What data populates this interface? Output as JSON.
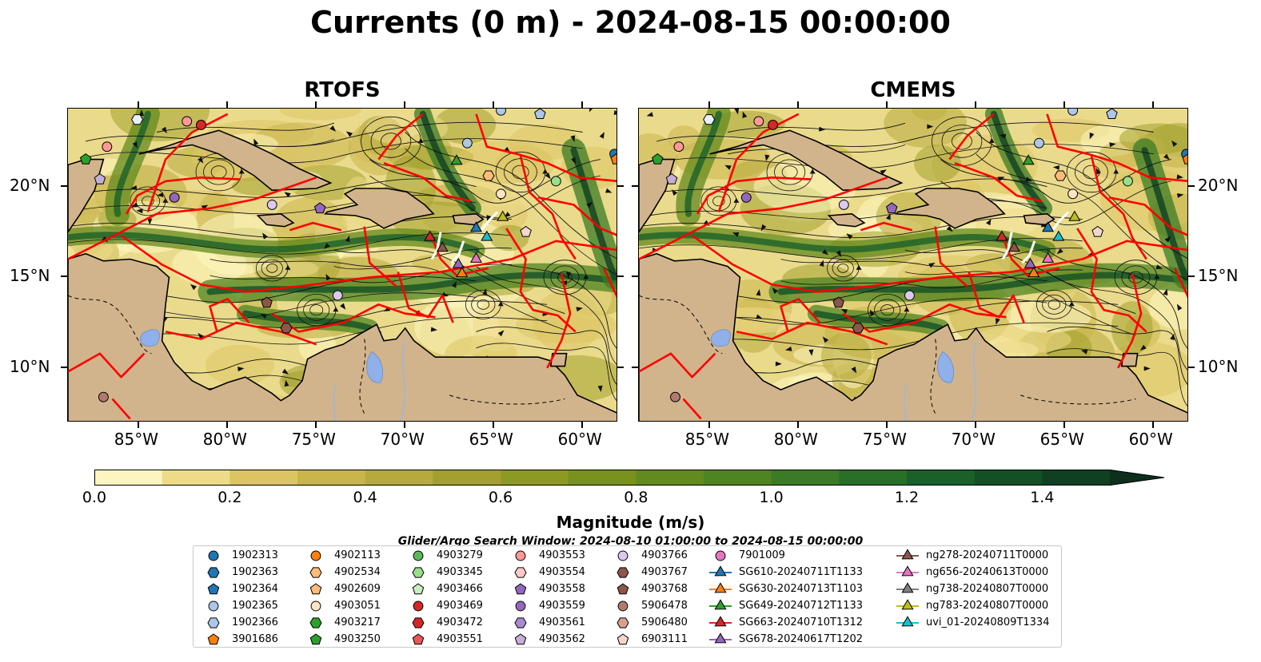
{
  "title": "Currents (0 m) - 2024-08-15 00:00:00",
  "panels": [
    {
      "title": "RTOFS"
    },
    {
      "title": "CMEMS"
    }
  ],
  "axes": {
    "lat_ticks": [
      "20°N",
      "15°N",
      "10°N"
    ],
    "lon_ticks": [
      "85°W",
      "80°W",
      "75°W",
      "70°W",
      "65°W",
      "60°W"
    ]
  },
  "colorbar": {
    "title": "Magnitude (m/s)",
    "ticks": [
      "0.0",
      "0.2",
      "0.4",
      "0.6",
      "0.8",
      "1.0",
      "1.2",
      "1.4"
    ],
    "range": [
      0,
      1.5
    ],
    "extend": "max",
    "colors": [
      "#fdf5c0",
      "#eddb8a",
      "#dcc462",
      "#c9b54a",
      "#b7aa3c",
      "#a3a02d",
      "#8d9a21",
      "#78921d",
      "#638a1e",
      "#4f8422",
      "#3b7b26",
      "#286f28",
      "#1a6028",
      "#145026",
      "#104022",
      "#0d2f1c"
    ]
  },
  "search_window": "Glider/Argo Search Window: 2024-08-10 01:00:00 to 2024-08-15 00:00:00",
  "legend": {
    "columns": [
      [
        {
          "label": "1902313",
          "shape": "circle",
          "color": "#1f77b4"
        },
        {
          "label": "1902363",
          "shape": "hexagon",
          "color": "#1f77b4"
        },
        {
          "label": "1902364",
          "shape": "pentagon",
          "color": "#1f77b4"
        },
        {
          "label": "1902365",
          "shape": "circle",
          "color": "#aec7e8"
        },
        {
          "label": "1902366",
          "shape": "hexagon",
          "color": "#aec7e8"
        },
        {
          "label": "3901686",
          "shape": "pentagon",
          "color": "#ff7f0e"
        }
      ],
      [
        {
          "label": "4902113",
          "shape": "circle",
          "color": "#ff7f0e"
        },
        {
          "label": "4902534",
          "shape": "hexagon",
          "color": "#ffbb78"
        },
        {
          "label": "4902609",
          "shape": "pentagon",
          "color": "#ffbb78"
        },
        {
          "label": "4903051",
          "shape": "circle",
          "color": "#ffe4c4"
        },
        {
          "label": "4903217",
          "shape": "hexagon",
          "color": "#2ca02c"
        },
        {
          "label": "4903250",
          "shape": "pentagon",
          "color": "#2ca02c"
        }
      ],
      [
        {
          "label": "4903279",
          "shape": "circle",
          "color": "#5cb85c"
        },
        {
          "label": "4903345",
          "shape": "hexagon",
          "color": "#98df8a"
        },
        {
          "label": "4903466",
          "shape": "pentagon",
          "color": "#c7f0c0"
        },
        {
          "label": "4903469",
          "shape": "circle",
          "color": "#d62728"
        },
        {
          "label": "4903472",
          "shape": "hexagon",
          "color": "#d62728"
        },
        {
          "label": "4903551",
          "shape": "pentagon",
          "color": "#e8585a"
        }
      ],
      [
        {
          "label": "4903553",
          "shape": "circle",
          "color": "#ff9896"
        },
        {
          "label": "4903554",
          "shape": "hexagon",
          "color": "#ffc9c9"
        },
        {
          "label": "4903558",
          "shape": "pentagon",
          "color": "#9467bd"
        },
        {
          "label": "4903559",
          "shape": "circle",
          "color": "#9467bd"
        },
        {
          "label": "4903561",
          "shape": "hexagon",
          "color": "#a98ad1"
        },
        {
          "label": "4903562",
          "shape": "pentagon",
          "color": "#c5b0d5"
        }
      ],
      [
        {
          "label": "4903766",
          "shape": "circle",
          "color": "#ddc8f0"
        },
        {
          "label": "4903767",
          "shape": "hexagon",
          "color": "#8c564b"
        },
        {
          "label": "4903768",
          "shape": "pentagon",
          "color": "#8c564b"
        },
        {
          "label": "5906478",
          "shape": "circle",
          "color": "#b07a6e"
        },
        {
          "label": "5906480",
          "shape": "hexagon",
          "color": "#d9a090"
        },
        {
          "label": "6903111",
          "shape": "pentagon",
          "color": "#f2d6cc"
        }
      ],
      [
        {
          "label": "7901009",
          "shape": "circle",
          "color": "#e377c2"
        },
        {
          "label": "SG610-20240711T1133",
          "shape": "triangle",
          "color": "#1f77b4"
        },
        {
          "label": "SG630-20240713T1103",
          "shape": "triangle",
          "color": "#ff7f0e"
        },
        {
          "label": "SG649-20240712T1133",
          "shape": "triangle",
          "color": "#2ca02c"
        },
        {
          "label": "SG663-20240710T1312",
          "shape": "triangle",
          "color": "#d62728"
        },
        {
          "label": "SG678-20240617T1202",
          "shape": "triangle",
          "color": "#9467bd"
        }
      ],
      [
        {
          "label": "ng278-20240711T0000",
          "shape": "triangle",
          "color": "#8c564b"
        },
        {
          "label": "ng656-20240613T0000",
          "shape": "triangle",
          "color": "#e377c2"
        },
        {
          "label": "ng738-20240807T0000",
          "shape": "triangle",
          "color": "#7f7f7f"
        },
        {
          "label": "ng783-20240807T0000",
          "shape": "triangle",
          "color": "#bcbd22"
        },
        {
          "label": "uvi_01-20240809T1334",
          "shape": "triangle",
          "color": "#17becf"
        }
      ]
    ]
  }
}
